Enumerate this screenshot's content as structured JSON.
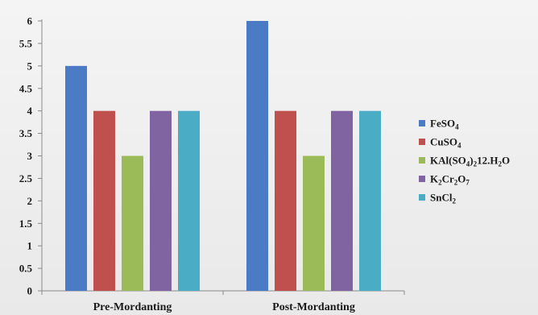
{
  "chart_data": {
    "type": "bar",
    "categories": [
      "Pre-Mordanting",
      "Post-Mordanting"
    ],
    "series": [
      {
        "name": "FeSO4",
        "label_parts": [
          [
            "FeSO",
            false
          ],
          [
            "4",
            true
          ]
        ],
        "color": "#4a7bc4",
        "values": [
          5,
          6
        ]
      },
      {
        "name": "CuSO4",
        "label_parts": [
          [
            "CuSO",
            false
          ],
          [
            "4",
            true
          ]
        ],
        "color": "#c0504d",
        "values": [
          4,
          4
        ]
      },
      {
        "name": "KAl(SO4)2 12.H2O",
        "label_parts": [
          [
            "KAl(SO",
            false
          ],
          [
            "4",
            true
          ],
          [
            ")",
            false
          ],
          [
            "2",
            true
          ],
          [
            "12.H",
            false
          ],
          [
            "2",
            true
          ],
          [
            "O",
            false
          ]
        ],
        "color": "#9bbb59",
        "values": [
          3,
          3
        ]
      },
      {
        "name": "K2Cr2O7",
        "label_parts": [
          [
            "K",
            false
          ],
          [
            "2",
            true
          ],
          [
            "Cr",
            false
          ],
          [
            "2",
            true
          ],
          [
            "O",
            false
          ],
          [
            "7",
            true
          ]
        ],
        "color": "#8064a2",
        "values": [
          4,
          4
        ]
      },
      {
        "name": "SnCl2",
        "label_parts": [
          [
            "SnCl",
            false
          ],
          [
            "2",
            true
          ]
        ],
        "color": "#4bacc6",
        "values": [
          4,
          4
        ]
      }
    ],
    "ylim": [
      0,
      6
    ],
    "yticks": [
      "0",
      "0.5",
      "1",
      "1.5",
      "2",
      "2.5",
      "3",
      "3.5",
      "4",
      "4.5",
      "5",
      "5.5",
      "6"
    ],
    "grid": false,
    "legend_position": "right",
    "title": "",
    "xlabel": "",
    "ylabel": ""
  }
}
